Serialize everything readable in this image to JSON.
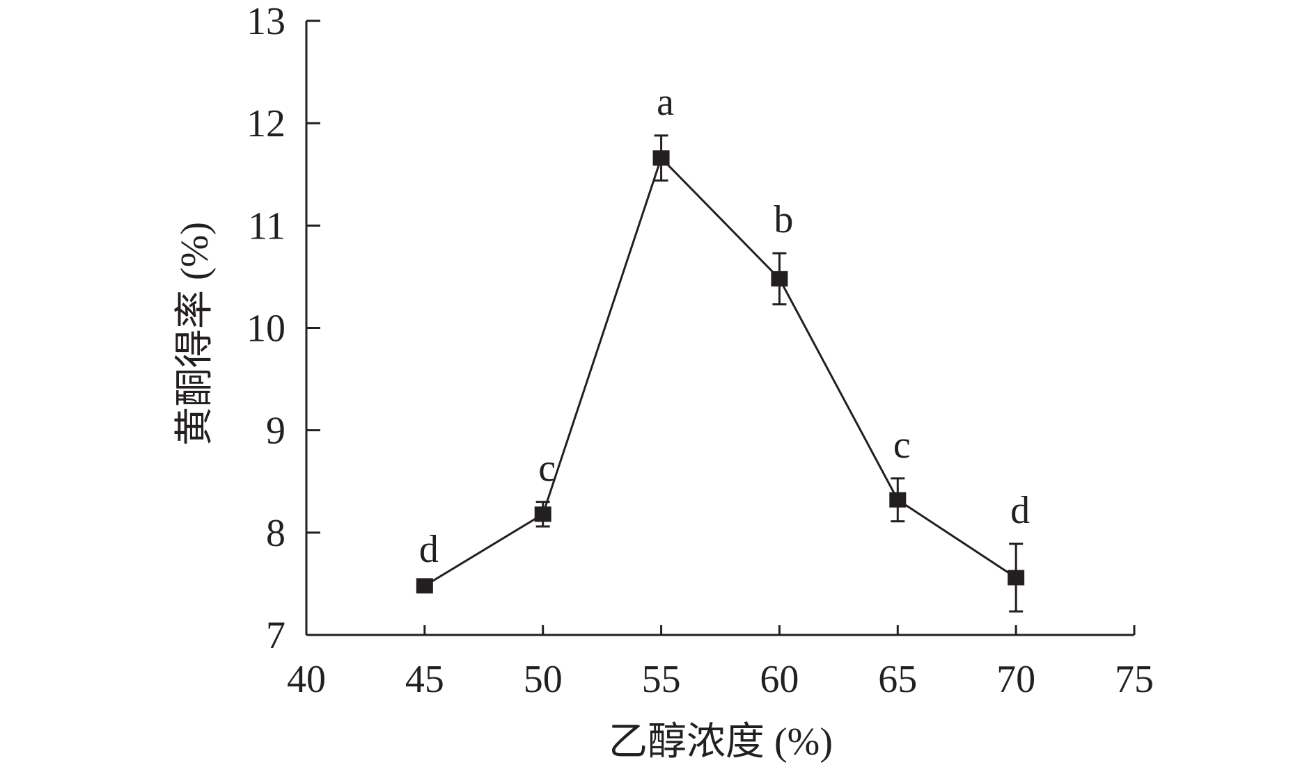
{
  "chart_data": {
    "type": "line",
    "title": "",
    "xlabel": "乙醇浓度 (%)",
    "ylabel": "黄酮得率 (%)",
    "xlim": [
      40,
      75
    ],
    "ylim": [
      7,
      13
    ],
    "xticks": [
      40,
      45,
      50,
      55,
      60,
      65,
      70,
      75
    ],
    "yticks": [
      7,
      8,
      9,
      10,
      11,
      12,
      13
    ],
    "grid": false,
    "legend": "none",
    "marker": "square",
    "color": "#231f20",
    "series": [
      {
        "x": [
          45,
          50,
          55,
          60,
          65,
          70
        ],
        "values": [
          7.48,
          8.18,
          11.66,
          10.48,
          8.32,
          7.56
        ],
        "errors": [
          0.03,
          0.12,
          0.22,
          0.25,
          0.21,
          0.33
        ],
        "labels": [
          "d",
          "c",
          "a",
          "b",
          "c",
          "d"
        ]
      }
    ]
  }
}
